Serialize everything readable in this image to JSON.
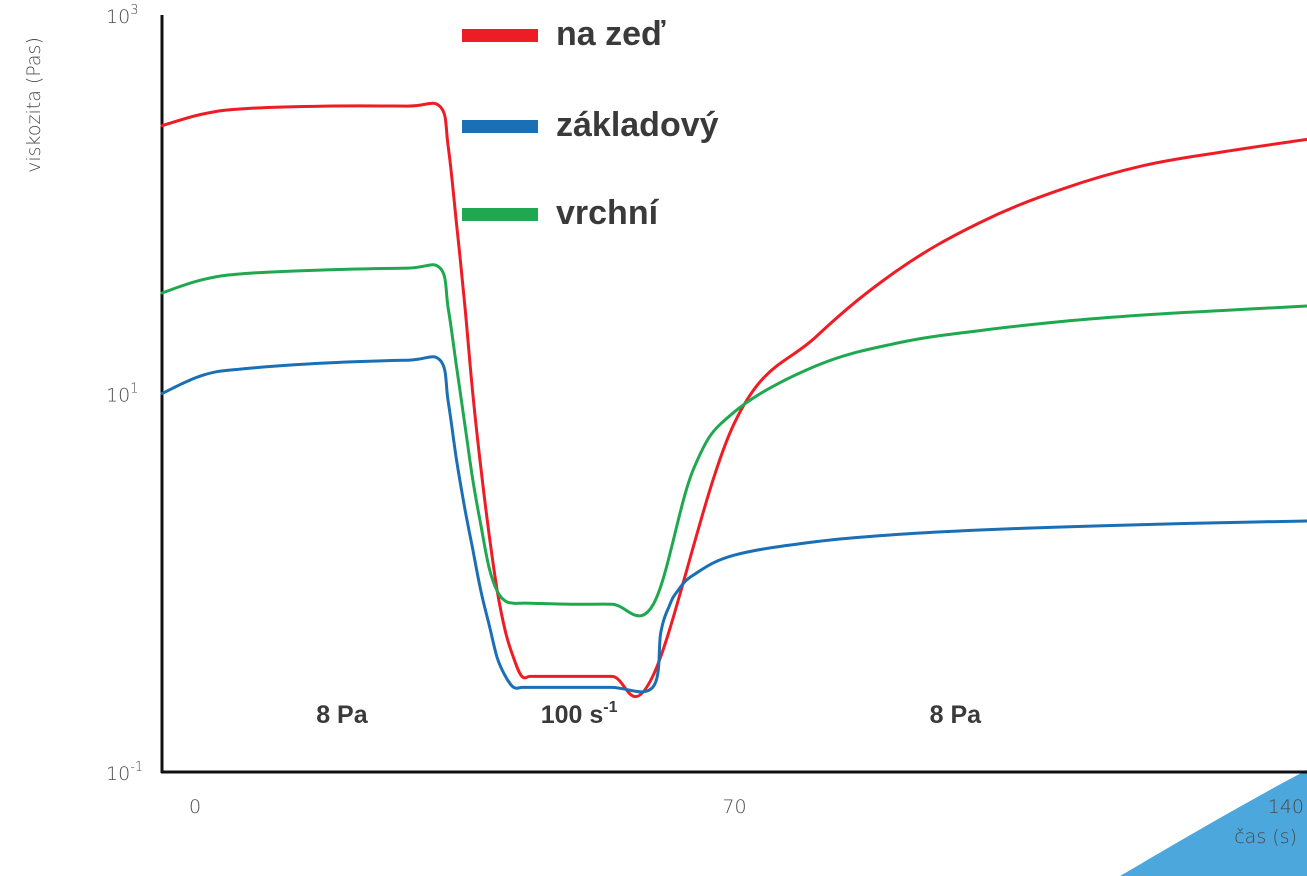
{
  "chart_data": {
    "type": "line",
    "title": "",
    "xlabel": "čas (s)",
    "ylabel": "viskozita (Pas)",
    "xlim": [
      0,
      140
    ],
    "y_scale": "log",
    "ylim": [
      0.1,
      1000
    ],
    "x_tick_labels": [
      "0",
      "70",
      "140"
    ],
    "x_tick_values": [
      0,
      70,
      140
    ],
    "y_tick_values": [
      0.1,
      10,
      1000
    ],
    "y_tick_labels": [
      {
        "base": "10",
        "exp": "-1"
      },
      {
        "base": "10",
        "exp": "1"
      },
      {
        "base": "10",
        "exp": "3"
      }
    ],
    "phase_labels": [
      {
        "text": "8 Pa",
        "sup": "",
        "x": 22
      },
      {
        "text": "100 s",
        "sup": "-1",
        "x": 51
      },
      {
        "text": "8 Pa",
        "sup": "",
        "x": 97
      }
    ],
    "legend_position": "top-center",
    "series": [
      {
        "name": "na zeď",
        "color": "#ee1c24",
        "x": [
          0,
          5,
          10,
          20,
          30,
          34,
          35,
          36,
          37,
          38,
          39,
          40,
          41,
          42,
          43,
          44,
          45,
          46,
          47,
          48,
          49,
          50,
          55,
          60,
          70,
          80,
          90,
          100,
          110,
          120,
          130,
          140
        ],
        "y": [
          260,
          300,
          320,
          330,
          330,
          328,
          200,
          80,
          30,
          10,
          4,
          1.8,
          0.9,
          0.55,
          0.4,
          0.32,
          0.32,
          0.32,
          0.32,
          0.32,
          0.32,
          0.32,
          0.32,
          0.32,
          7,
          20,
          45,
          80,
          120,
          160,
          190,
          220
        ]
      },
      {
        "name": "základový",
        "color": "#1a6fb5",
        "x": [
          0,
          5,
          10,
          20,
          30,
          34,
          35,
          36,
          37,
          38,
          39,
          40,
          41,
          42,
          43,
          44,
          45,
          50,
          55,
          60,
          61,
          62,
          63,
          65,
          70,
          80,
          90,
          100,
          110,
          120,
          130,
          140
        ],
        "y": [
          10,
          12.5,
          13.5,
          14.5,
          15,
          15,
          9,
          4.5,
          2.5,
          1.5,
          0.9,
          0.6,
          0.4,
          0.32,
          0.28,
          0.28,
          0.28,
          0.28,
          0.28,
          0.28,
          0.55,
          0.75,
          0.9,
          1.1,
          1.4,
          1.65,
          1.8,
          1.9,
          1.97,
          2.03,
          2.08,
          2.12
        ]
      },
      {
        "name": "vrchní",
        "color": "#1fa84f",
        "x": [
          0,
          5,
          10,
          20,
          30,
          34,
          35,
          36,
          37,
          38,
          39,
          40,
          41,
          42,
          43,
          44,
          45,
          50,
          55,
          60,
          65,
          70,
          80,
          90,
          100,
          110,
          120,
          130,
          140
        ],
        "y": [
          34,
          40,
          43,
          45,
          46,
          46,
          28,
          14,
          7,
          3.5,
          2,
          1.2,
          0.9,
          0.8,
          0.78,
          0.78,
          0.78,
          0.77,
          0.77,
          0.76,
          4,
          8,
          14,
          18.5,
          21.5,
          24,
          26,
          27.5,
          29
        ]
      }
    ]
  }
}
